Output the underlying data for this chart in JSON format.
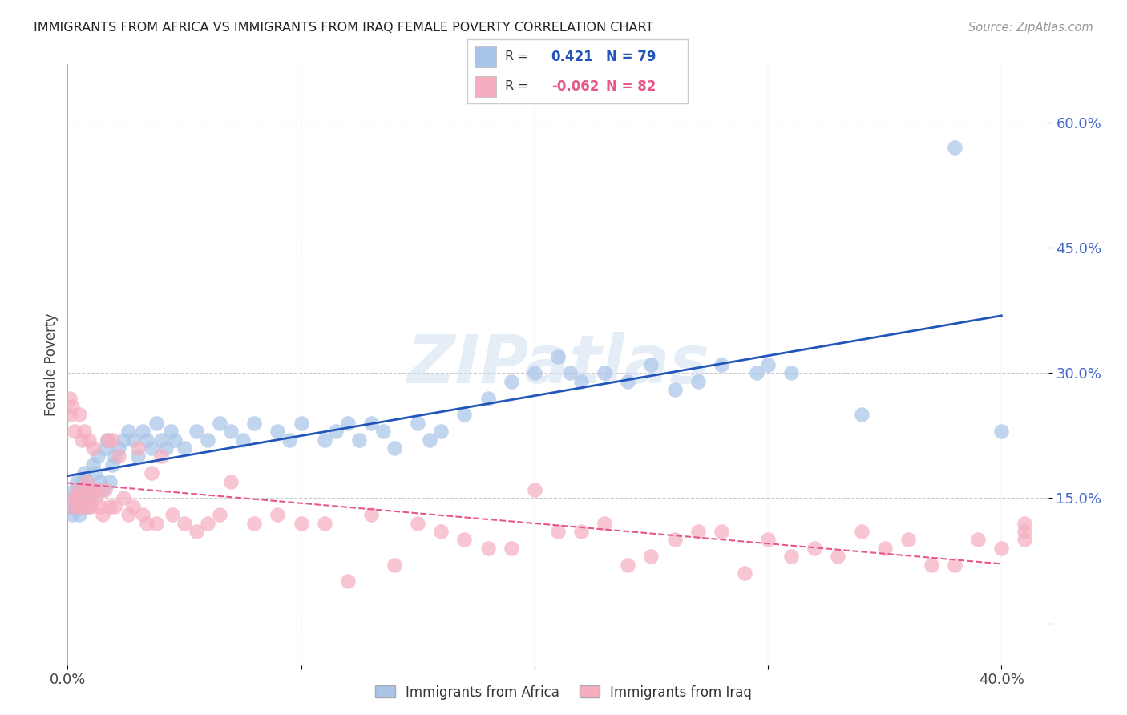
{
  "title": "IMMIGRANTS FROM AFRICA VS IMMIGRANTS FROM IRAQ FEMALE POVERTY CORRELATION CHART",
  "source": "Source: ZipAtlas.com",
  "ylabel": "Female Poverty",
  "yticks": [
    0.0,
    0.15,
    0.3,
    0.45,
    0.6
  ],
  "ytick_labels": [
    "",
    "15.0%",
    "30.0%",
    "45.0%",
    "60.0%"
  ],
  "xtick_labels": [
    "0.0%",
    "",
    "",
    "",
    "40.0%"
  ],
  "xlim": [
    0.0,
    0.42
  ],
  "ylim": [
    -0.05,
    0.67
  ],
  "africa_color": "#a8c4e8",
  "iraq_color": "#f5aec0",
  "africa_line_color": "#2255bb",
  "iraq_line_color": "#e8558a",
  "africa_R": 0.421,
  "africa_N": 79,
  "iraq_R": -0.062,
  "iraq_N": 82,
  "watermark": "ZIPatlas",
  "africa_x": [
    0.001,
    0.002,
    0.002,
    0.003,
    0.003,
    0.004,
    0.004,
    0.005,
    0.005,
    0.006,
    0.006,
    0.007,
    0.007,
    0.008,
    0.008,
    0.009,
    0.01,
    0.011,
    0.012,
    0.013,
    0.014,
    0.015,
    0.016,
    0.017,
    0.018,
    0.019,
    0.02,
    0.022,
    0.024,
    0.026,
    0.028,
    0.03,
    0.032,
    0.034,
    0.036,
    0.038,
    0.04,
    0.042,
    0.044,
    0.046,
    0.05,
    0.055,
    0.06,
    0.065,
    0.07,
    0.075,
    0.08,
    0.09,
    0.095,
    0.1,
    0.11,
    0.115,
    0.12,
    0.125,
    0.13,
    0.135,
    0.14,
    0.15,
    0.155,
    0.16,
    0.17,
    0.18,
    0.19,
    0.2,
    0.21,
    0.215,
    0.22,
    0.23,
    0.24,
    0.25,
    0.26,
    0.27,
    0.28,
    0.295,
    0.3,
    0.31,
    0.34,
    0.38,
    0.4
  ],
  "africa_y": [
    0.14,
    0.15,
    0.13,
    0.16,
    0.14,
    0.15,
    0.17,
    0.13,
    0.16,
    0.14,
    0.17,
    0.15,
    0.18,
    0.14,
    0.17,
    0.16,
    0.15,
    0.19,
    0.18,
    0.2,
    0.17,
    0.16,
    0.21,
    0.22,
    0.17,
    0.19,
    0.2,
    0.21,
    0.22,
    0.23,
    0.22,
    0.2,
    0.23,
    0.22,
    0.21,
    0.24,
    0.22,
    0.21,
    0.23,
    0.22,
    0.21,
    0.23,
    0.22,
    0.24,
    0.23,
    0.22,
    0.24,
    0.23,
    0.22,
    0.24,
    0.22,
    0.23,
    0.24,
    0.22,
    0.24,
    0.23,
    0.21,
    0.24,
    0.22,
    0.23,
    0.25,
    0.27,
    0.29,
    0.3,
    0.32,
    0.3,
    0.29,
    0.3,
    0.29,
    0.31,
    0.28,
    0.29,
    0.31,
    0.3,
    0.31,
    0.3,
    0.25,
    0.57,
    0.23
  ],
  "iraq_x": [
    0.001,
    0.001,
    0.002,
    0.002,
    0.003,
    0.003,
    0.004,
    0.004,
    0.005,
    0.005,
    0.006,
    0.006,
    0.007,
    0.007,
    0.008,
    0.008,
    0.009,
    0.009,
    0.01,
    0.01,
    0.011,
    0.012,
    0.013,
    0.014,
    0.015,
    0.016,
    0.017,
    0.018,
    0.019,
    0.02,
    0.022,
    0.024,
    0.026,
    0.028,
    0.03,
    0.032,
    0.034,
    0.036,
    0.038,
    0.04,
    0.045,
    0.05,
    0.055,
    0.06,
    0.065,
    0.07,
    0.08,
    0.09,
    0.1,
    0.11,
    0.12,
    0.13,
    0.14,
    0.15,
    0.16,
    0.17,
    0.18,
    0.19,
    0.2,
    0.21,
    0.22,
    0.23,
    0.24,
    0.25,
    0.26,
    0.27,
    0.28,
    0.29,
    0.3,
    0.31,
    0.32,
    0.33,
    0.34,
    0.35,
    0.36,
    0.37,
    0.38,
    0.39,
    0.4,
    0.41,
    0.41,
    0.41
  ],
  "iraq_y": [
    0.25,
    0.27,
    0.14,
    0.26,
    0.15,
    0.23,
    0.15,
    0.16,
    0.14,
    0.25,
    0.14,
    0.22,
    0.16,
    0.23,
    0.15,
    0.17,
    0.14,
    0.22,
    0.14,
    0.16,
    0.21,
    0.15,
    0.16,
    0.14,
    0.13,
    0.16,
    0.22,
    0.14,
    0.22,
    0.14,
    0.2,
    0.15,
    0.13,
    0.14,
    0.21,
    0.13,
    0.12,
    0.18,
    0.12,
    0.2,
    0.13,
    0.12,
    0.11,
    0.12,
    0.13,
    0.17,
    0.12,
    0.13,
    0.12,
    0.12,
    0.05,
    0.13,
    0.07,
    0.12,
    0.11,
    0.1,
    0.09,
    0.09,
    0.16,
    0.11,
    0.11,
    0.12,
    0.07,
    0.08,
    0.1,
    0.11,
    0.11,
    0.06,
    0.1,
    0.08,
    0.09,
    0.08,
    0.11,
    0.09,
    0.1,
    0.07,
    0.07,
    0.1,
    0.09,
    0.12,
    0.11,
    0.1
  ]
}
